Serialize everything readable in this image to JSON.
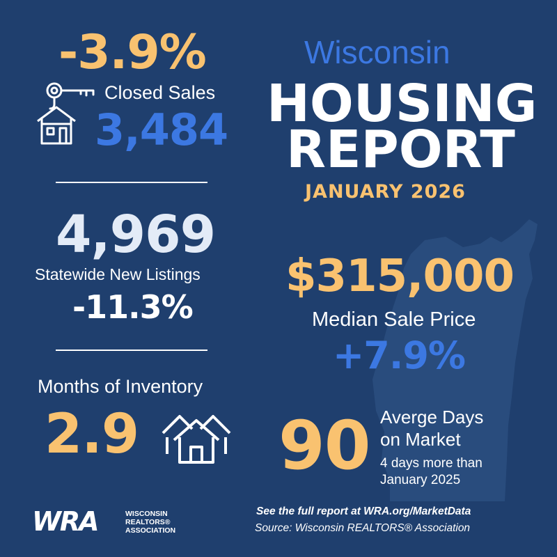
{
  "closed_sales": {
    "change": "-3.9%",
    "label": "Closed Sales",
    "value": "3,484"
  },
  "new_listings": {
    "value": "4,969",
    "label": "Statewide New Listings",
    "change": "-11.3%"
  },
  "inventory": {
    "label": "Months of Inventory",
    "value": "2.9"
  },
  "title": {
    "state": "Wisconsin",
    "line1": "HOUSING",
    "line2": "REPORT",
    "period": "JANUARY 2026"
  },
  "median_price": {
    "value": "$315,000",
    "label": "Median Sale Price",
    "change": "+7.9%"
  },
  "days_on_market": {
    "value": "90",
    "label_line1": "Averge Days",
    "label_line2": "on Market",
    "note_line1": "4 days more than",
    "note_line2": "January 2025"
  },
  "footer": {
    "logo_text": "WRA",
    "logo_name_line1": "WISCONSIN",
    "logo_name_line2": "REALTORS®",
    "logo_name_line3": "ASSOCIATION",
    "report_link": "See the full report at WRA.org/MarketData",
    "source": "Source: Wisconsin REALTORS® Association"
  },
  "colors": {
    "background": "#1f3f6e",
    "accent_orange": "#f9c270",
    "accent_blue": "#3c78e2",
    "text_white": "#ffffff",
    "pale_text": "#e3ebf7"
  },
  "icons": [
    "key-icon",
    "house-icon",
    "houses-icon",
    "wisconsin-map-icon"
  ]
}
